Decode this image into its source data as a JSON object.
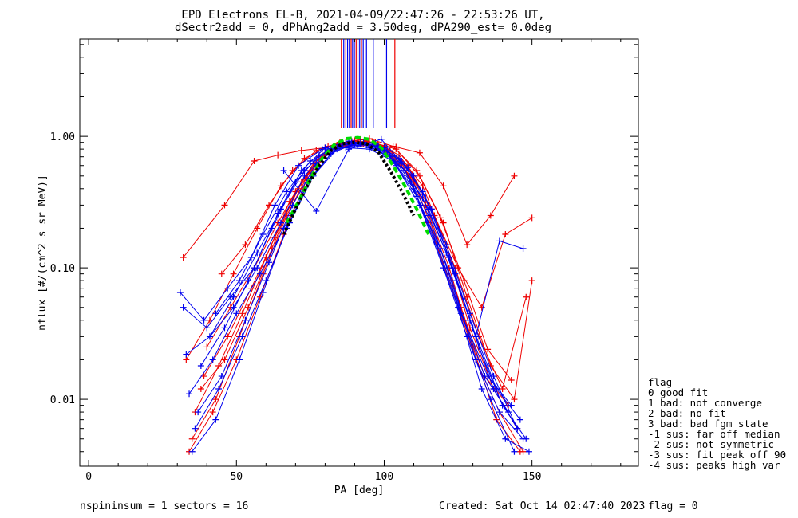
{
  "title": {
    "line1": "EPD Electrons EL-B, 2021-04-09/22:47:26 - 22:53:26 UT,",
    "line2": "dSectr2add = 0, dPhAng2add = 3.50deg, dPA290_est=    0.0deg"
  },
  "legend": {
    "heading": "flag",
    "items": [
      "0 good fit",
      "1 bad: not converge",
      "2 bad: no fit",
      "3 bad: bad fgm state",
      "-1 sus: far off median",
      "-2 sus: not symmetric",
      "-3 sus: fit peak off 90",
      "-4 sus: peaks high var"
    ]
  },
  "footer": {
    "left": "nspininsum =  1  sectors = 16",
    "created": "Created: Sat Oct 14 02:47:40 2023",
    "flag": "flag = 0"
  },
  "colors": {
    "red": "#ee0000",
    "blue": "#0000ee",
    "fit_green": "#00dd00",
    "fit_black": "#000000"
  },
  "chart_data": {
    "type": "line",
    "xlabel": "PA [deg]",
    "ylabel": "nflux [#/(cm^2 s sr MeV)]",
    "xlim": [
      -3,
      186
    ],
    "ylim": [
      0.0031,
      5.5
    ],
    "yscale": "log",
    "xticks": [
      0,
      50,
      100,
      150
    ],
    "xtick_labels": [
      "0",
      "50",
      "100",
      "150"
    ],
    "yticks": [
      0.01,
      0.1,
      1.0
    ],
    "ytick_labels": [
      "0.01",
      "0.10",
      "1.00"
    ],
    "grid": false,
    "marker": "+",
    "series": [
      {
        "color": "red",
        "x": [
          32,
          46,
          56,
          64,
          72,
          80,
          88,
          96,
          104,
          112,
          120,
          128,
          136,
          144
        ],
        "y": [
          0.12,
          0.3,
          0.65,
          0.72,
          0.78,
          0.82,
          0.85,
          0.85,
          0.83,
          0.75,
          0.42,
          0.15,
          0.25,
          0.5
        ]
      },
      {
        "color": "red",
        "x": [
          33,
          41,
          49,
          57,
          65,
          73,
          81,
          89,
          97,
          105,
          113,
          121,
          129,
          137,
          145
        ],
        "y": [
          0.02,
          0.04,
          0.09,
          0.2,
          0.42,
          0.68,
          0.84,
          0.92,
          0.9,
          0.72,
          0.42,
          0.15,
          0.035,
          0.012,
          0.006
        ]
      },
      {
        "color": "red",
        "x": [
          35,
          43,
          51,
          59,
          67,
          75,
          83,
          91,
          99,
          107,
          115,
          123,
          131,
          139,
          147
        ],
        "y": [
          0.005,
          0.01,
          0.03,
          0.09,
          0.25,
          0.55,
          0.82,
          0.9,
          0.82,
          0.55,
          0.22,
          0.07,
          0.02,
          0.008,
          0.004
        ]
      },
      {
        "color": "red",
        "x": [
          38,
          46,
          54,
          62,
          70,
          78,
          86,
          94,
          102,
          110,
          118,
          126,
          134,
          142
        ],
        "y": [
          0.012,
          0.02,
          0.05,
          0.14,
          0.38,
          0.7,
          0.88,
          0.92,
          0.78,
          0.45,
          0.16,
          0.05,
          0.015,
          0.009
        ]
      },
      {
        "color": "red",
        "x": [
          36,
          44,
          52,
          60,
          68,
          76,
          84,
          92,
          100,
          108,
          116,
          124,
          132,
          140,
          148
        ],
        "y": [
          0.008,
          0.018,
          0.045,
          0.12,
          0.32,
          0.62,
          0.86,
          0.95,
          0.85,
          0.6,
          0.28,
          0.1,
          0.03,
          0.012,
          0.06
        ]
      },
      {
        "color": "red",
        "x": [
          40,
          48,
          56,
          64,
          72,
          80,
          88,
          96,
          104,
          112,
          120,
          128,
          136,
          144,
          150
        ],
        "y": [
          0.025,
          0.05,
          0.1,
          0.22,
          0.45,
          0.72,
          0.88,
          0.9,
          0.8,
          0.5,
          0.22,
          0.06,
          0.018,
          0.01,
          0.08
        ]
      },
      {
        "color": "red",
        "x": [
          34,
          42,
          50,
          58,
          66,
          74,
          82,
          90,
          98,
          106,
          114,
          122,
          130,
          138,
          146
        ],
        "y": [
          0.004,
          0.008,
          0.02,
          0.06,
          0.18,
          0.48,
          0.8,
          0.93,
          0.86,
          0.62,
          0.3,
          0.1,
          0.025,
          0.007,
          0.004
        ]
      },
      {
        "color": "red",
        "x": [
          45,
          53,
          61,
          69,
          77,
          85,
          93,
          101,
          109,
          117,
          125,
          133,
          141,
          150
        ],
        "y": [
          0.09,
          0.15,
          0.3,
          0.55,
          0.78,
          0.9,
          0.88,
          0.76,
          0.5,
          0.25,
          0.1,
          0.05,
          0.18,
          0.24
        ]
      },
      {
        "color": "red",
        "x": [
          39,
          47,
          55,
          63,
          71,
          79,
          87,
          95,
          103,
          111,
          119,
          127,
          135,
          143
        ],
        "y": [
          0.015,
          0.03,
          0.07,
          0.17,
          0.4,
          0.72,
          0.9,
          0.96,
          0.84,
          0.55,
          0.24,
          0.08,
          0.024,
          0.014
        ]
      },
      {
        "color": "blue",
        "x": [
          31,
          39,
          47,
          55,
          63,
          71,
          79,
          87,
          95,
          103,
          111,
          119,
          127,
          135,
          143
        ],
        "y": [
          0.065,
          0.04,
          0.07,
          0.12,
          0.3,
          0.6,
          0.8,
          0.82,
          0.8,
          0.65,
          0.35,
          0.14,
          0.04,
          0.015,
          0.009
        ]
      },
      {
        "color": "blue",
        "x": [
          33,
          41,
          49,
          57,
          65,
          73,
          81,
          89,
          97,
          105,
          113,
          121,
          129,
          137,
          145
        ],
        "y": [
          0.022,
          0.03,
          0.05,
          0.1,
          0.22,
          0.5,
          0.78,
          0.9,
          0.88,
          0.68,
          0.38,
          0.15,
          0.045,
          0.015,
          0.006
        ]
      },
      {
        "color": "blue",
        "x": [
          35,
          43,
          51,
          59,
          67,
          75,
          83,
          91,
          99,
          107,
          115,
          123,
          131,
          139,
          147
        ],
        "y": [
          0.004,
          0.007,
          0.02,
          0.065,
          0.2,
          0.48,
          0.78,
          0.88,
          0.8,
          0.55,
          0.25,
          0.08,
          0.02,
          0.008,
          0.005
        ]
      },
      {
        "color": "blue",
        "x": [
          37,
          45,
          53,
          61,
          69,
          77,
          85,
          93,
          101,
          109,
          117,
          125,
          133,
          141,
          149
        ],
        "y": [
          0.008,
          0.015,
          0.04,
          0.11,
          0.3,
          0.62,
          0.85,
          0.9,
          0.78,
          0.45,
          0.16,
          0.05,
          0.012,
          0.005,
          0.004
        ]
      },
      {
        "color": "blue",
        "x": [
          41,
          49,
          57,
          65,
          73,
          81,
          89,
          97,
          105,
          113,
          121,
          129,
          137,
          145
        ],
        "y": [
          0.03,
          0.06,
          0.13,
          0.28,
          0.55,
          0.8,
          0.9,
          0.85,
          0.64,
          0.34,
          0.13,
          0.04,
          0.012,
          0.006
        ]
      },
      {
        "color": "blue",
        "x": [
          32,
          40,
          48,
          56,
          64,
          72,
          80,
          88,
          96,
          104,
          112,
          120,
          128,
          136,
          144
        ],
        "y": [
          0.05,
          0.035,
          0.06,
          0.1,
          0.26,
          0.55,
          0.82,
          0.92,
          0.86,
          0.6,
          0.3,
          0.1,
          0.03,
          0.01,
          0.004
        ]
      },
      {
        "color": "blue",
        "x": [
          34,
          42,
          50,
          58,
          66,
          74,
          82,
          90,
          98,
          106,
          114,
          122,
          130,
          138,
          146
        ],
        "y": [
          0.011,
          0.02,
          0.045,
          0.09,
          0.2,
          0.44,
          0.74,
          0.88,
          0.84,
          0.64,
          0.34,
          0.12,
          0.035,
          0.012,
          0.007
        ]
      },
      {
        "color": "blue",
        "x": [
          43,
          51,
          59,
          67,
          75,
          83,
          91,
          99,
          107,
          115,
          123,
          131,
          139,
          147
        ],
        "y": [
          0.045,
          0.08,
          0.18,
          0.38,
          0.65,
          0.82,
          0.85,
          0.78,
          0.55,
          0.28,
          0.1,
          0.03,
          0.16,
          0.14
        ]
      },
      {
        "color": "blue",
        "x": [
          36,
          44,
          52,
          60,
          68,
          76,
          84,
          92,
          100,
          108,
          116,
          124,
          132,
          140,
          148
        ],
        "y": [
          0.006,
          0.012,
          0.03,
          0.08,
          0.22,
          0.5,
          0.8,
          0.9,
          0.82,
          0.58,
          0.28,
          0.09,
          0.025,
          0.009,
          0.005
        ]
      },
      {
        "color": "blue",
        "x": [
          38,
          46,
          54,
          62,
          70,
          78,
          86,
          94,
          102,
          110,
          118,
          126,
          134,
          142
        ],
        "y": [
          0.018,
          0.035,
          0.08,
          0.2,
          0.45,
          0.72,
          0.86,
          0.86,
          0.7,
          0.4,
          0.15,
          0.045,
          0.015,
          0.008
        ]
      },
      {
        "color": "blue",
        "x": [
          66,
          77,
          88,
          99,
          110
        ],
        "y": [
          0.55,
          0.27,
          0.8,
          0.95,
          0.5
        ]
      }
    ],
    "fit_curves": [
      {
        "color": "fit_green",
        "style": "dashed",
        "x": [
          67,
          71,
          75,
          79,
          83,
          87,
          91,
          95,
          99,
          103,
          107,
          111,
          115
        ],
        "y": [
          0.22,
          0.32,
          0.48,
          0.68,
          0.86,
          0.96,
          0.98,
          0.95,
          0.82,
          0.6,
          0.42,
          0.28,
          0.18
        ]
      },
      {
        "color": "fit_black",
        "style": "dotted",
        "x": [
          66,
          70,
          74,
          78,
          82,
          86,
          90,
          94,
          98,
          102,
          106,
          110
        ],
        "y": [
          0.18,
          0.28,
          0.42,
          0.6,
          0.78,
          0.88,
          0.9,
          0.88,
          0.76,
          0.55,
          0.38,
          0.25
        ]
      }
    ],
    "vertical_markers": [
      {
        "x": 85.5,
        "color": "red"
      },
      {
        "x": 86.3,
        "color": "blue"
      },
      {
        "x": 87.0,
        "color": "red"
      },
      {
        "x": 87.6,
        "color": "blue"
      },
      {
        "x": 88.2,
        "color": "blue"
      },
      {
        "x": 88.8,
        "color": "red"
      },
      {
        "x": 89.3,
        "color": "blue"
      },
      {
        "x": 89.9,
        "color": "blue"
      },
      {
        "x": 90.5,
        "color": "red"
      },
      {
        "x": 91.1,
        "color": "blue"
      },
      {
        "x": 91.7,
        "color": "blue"
      },
      {
        "x": 92.3,
        "color": "red"
      },
      {
        "x": 92.9,
        "color": "blue"
      },
      {
        "x": 94.0,
        "color": "blue"
      },
      {
        "x": 96.3,
        "color": "blue"
      },
      {
        "x": 100.8,
        "color": "blue"
      },
      {
        "x": 103.6,
        "color": "red"
      }
    ]
  }
}
